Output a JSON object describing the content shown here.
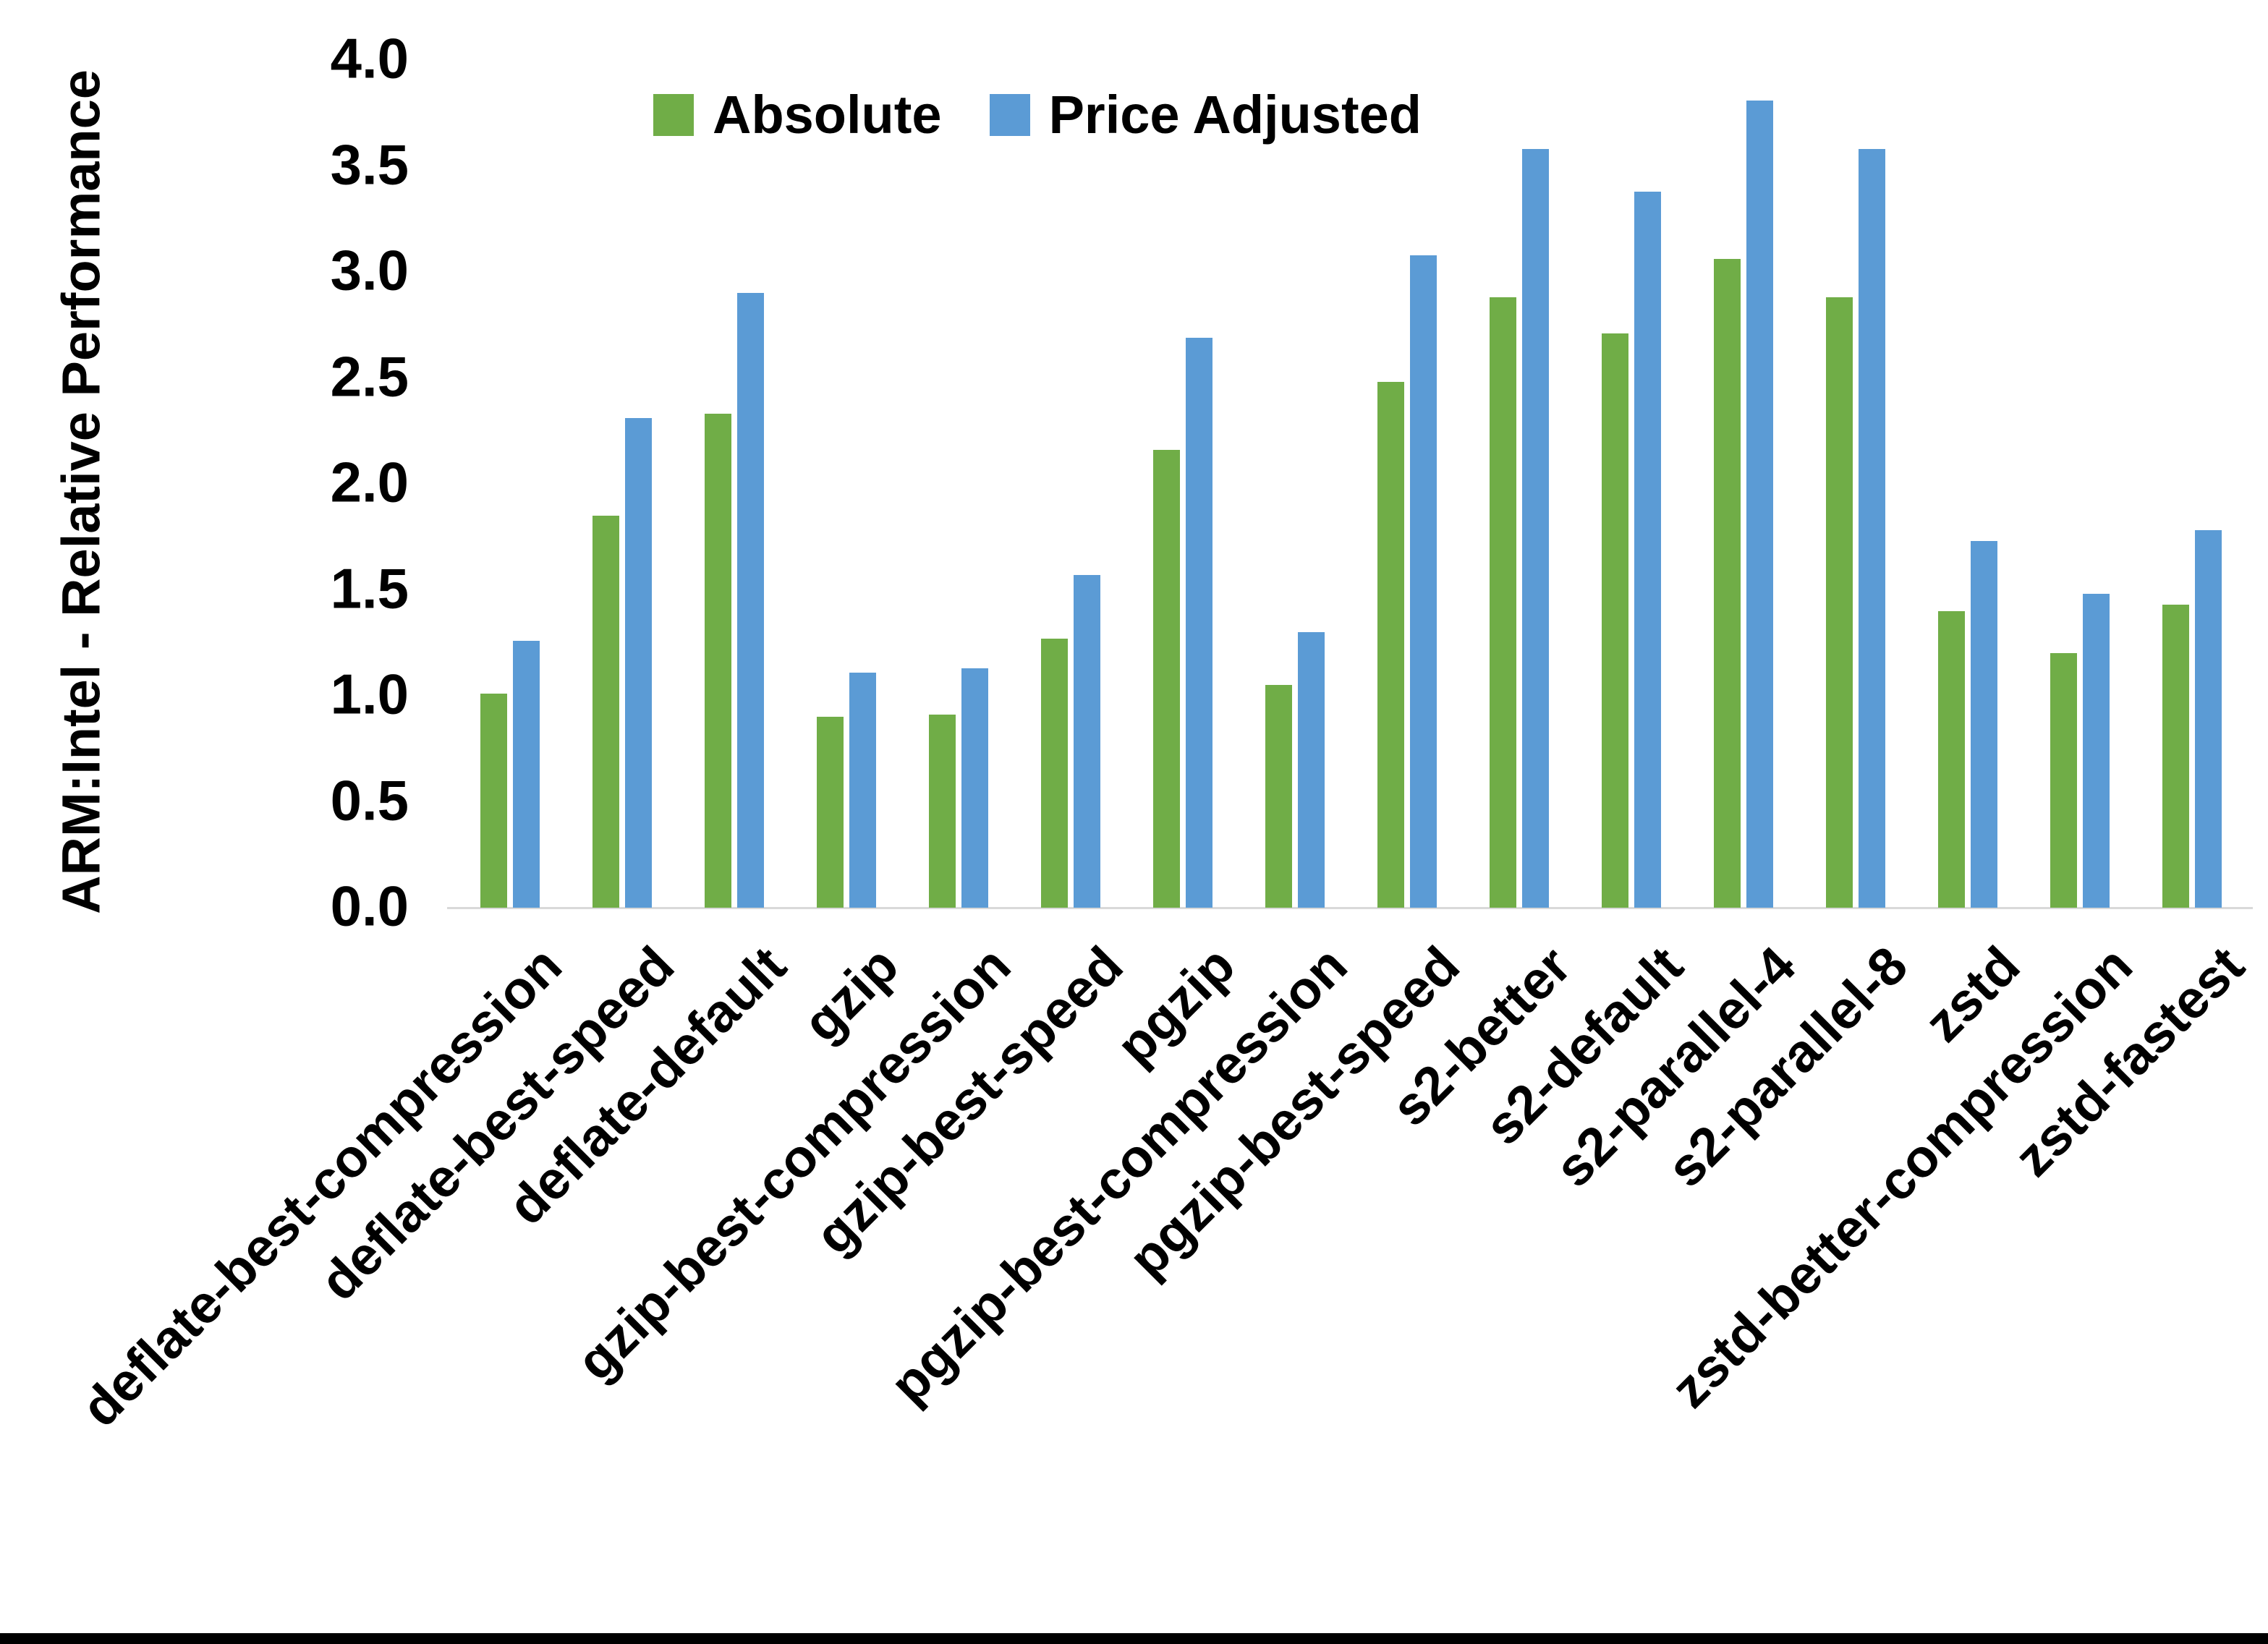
{
  "chart_data": {
    "type": "bar",
    "title": "",
    "ylabel": "ARM:Intel - Relative Performance",
    "xlabel": "",
    "ylim": [
      0.0,
      4.0
    ],
    "ytick_step": 0.5,
    "ytick_labels": [
      "0.0",
      "0.5",
      "1.0",
      "1.5",
      "2.0",
      "2.5",
      "3.0",
      "3.5",
      "4.0"
    ],
    "grid": false,
    "legend_position": "top-center",
    "categories": [
      "deflate-best-compression",
      "deflate-best-speed",
      "deflate-default",
      "gzip",
      "gzip-best-compression",
      "gzip-best-speed",
      "pgzip",
      "pgzip-best-compression",
      "pgzip-best-speed",
      "s2-better",
      "s2-default",
      "s2-parallel-4",
      "s2-parallel-8",
      "zstd",
      "zstd-better-compression",
      "zstd-fastest"
    ],
    "series": [
      {
        "name": "Absolute",
        "color": "#70AD47",
        "values": [
          1.01,
          1.85,
          2.33,
          0.9,
          0.91,
          1.27,
          2.16,
          1.05,
          2.48,
          2.88,
          2.71,
          3.06,
          2.88,
          1.4,
          1.2,
          1.43
        ]
      },
      {
        "name": "Price Adjusted",
        "color": "#5B9BD5",
        "values": [
          1.26,
          2.31,
          2.9,
          1.11,
          1.13,
          1.57,
          2.69,
          1.3,
          3.08,
          3.58,
          3.38,
          3.81,
          3.58,
          1.73,
          1.48,
          1.78
        ]
      }
    ]
  },
  "colors": {
    "background": "#FFFFFF",
    "axis_line": "#D9D9D9",
    "text": "#000000",
    "bottom_border": "#000000",
    "series_absolute": "#70AD47",
    "series_price_adjusted": "#5B9BD5"
  }
}
